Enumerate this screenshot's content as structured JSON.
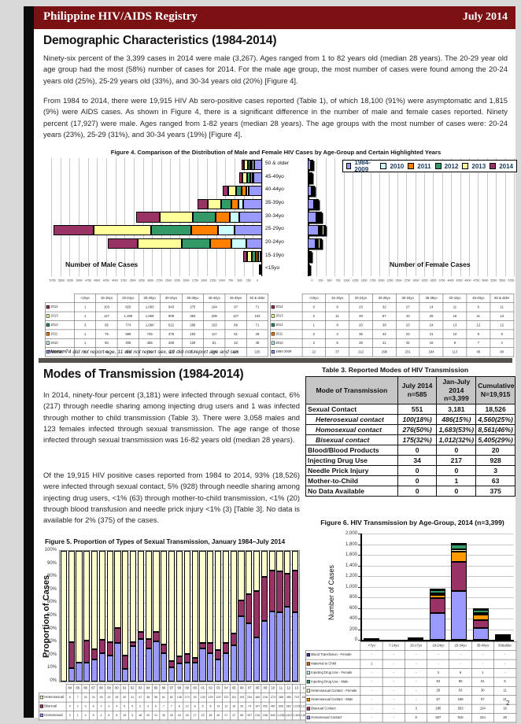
{
  "header": {
    "title": "Philippine HIV/AIDS Registry",
    "date": "July 2014"
  },
  "page_number": "2",
  "section1": {
    "heading": "Demographic Characteristics (1984-2014)",
    "para1": "Ninety-six percent of the 3,399 cases in 2014 were male (3,267). Ages ranged from 1 to 82 years old (median 28 years). The 20-29 year old age group had the most (58%) number of cases for 2014. For the male age group, the most number of cases were found among the 20-24 years old (25%), 25-29 years old (33%), and 30-34 years old (20%) [Figure 4].",
    "para2": "From 1984 to 2014, there were 19,915 HIV Ab sero-positive cases reported (Table 1), of which 18,100 (91%) were asymptomatic and 1,815 (9%) were AIDS cases. As shown in Figure 4, there is a significant difference in the number of male and female cases reported. Ninety percent (17,927) were male. Ages ranged from 1-82 years (median 28 years). The age groups with the most number of cases were: 20-24 years (23%), 25-29 (31%), and 30-34 years (19%) [Figure 4]."
  },
  "figure4": {
    "title": "Figure 4. Comparison of the Distribution of Male and Female HIV Cases by Age-Group and Certain Highlighted Years",
    "male_axis_label": "Number of Male Cases",
    "female_axis_label": "Number of Female Cases",
    "note_prefix": "*Note:",
    "note": "74 did not report age, 11 did not report sex, 10 did not report age and sex",
    "chart_data": {
      "type": "bar",
      "subtype": "butterfly-horizontal-stacked",
      "age_groups": [
        "<15yo",
        "15-19yo",
        "20-24yo",
        "25-29yo",
        "30-34yo",
        "35-39yo",
        "40-44yo",
        "45-49yo",
        "50 & older"
      ],
      "axis_max": 5750,
      "axis_step": 250,
      "legend_position": "top-right",
      "series": [
        {
          "name": "1984-2009",
          "color": "#9999FF",
          "male": [
            30,
            48,
            428,
            741,
            628,
            513,
            356,
            226,
            225
          ],
          "female": [
            22,
            37,
            212,
            298,
            231,
            184,
            113,
            45,
            80
          ]
        },
        {
          "name": "2010",
          "color": "#CCFFFF",
          "male": [
            1,
            50,
            405,
            455,
            258,
            128,
            81,
            42,
            48
          ],
          "female": [
            2,
            5,
            28,
            21,
            34,
            16,
            9,
            7,
            4
          ]
        },
        {
          "name": "2011",
          "color": "#FF8000",
          "male": [
            1,
            76,
            589,
            739,
            378,
            193,
            117,
            51,
            49
          ],
          "female": [
            2,
            3,
            36,
            44,
            23,
            21,
            10,
            8,
            9
          ]
        },
        {
          "name": "2012",
          "color": "#339966",
          "male": [
            3,
            95,
            774,
            1090,
            622,
            289,
            153,
            89,
            71
          ],
          "female": [
            1,
            8,
            20,
            39,
            23,
            24,
            13,
            12,
            12
          ]
        },
        {
          "name": "2013",
          "color": "#FFFF99",
          "male": [
            1,
            147,
            1199,
            1559,
            908,
            363,
            209,
            127,
            103
          ],
          "female": [
            2,
            11,
            48,
            57,
            43,
            29,
            16,
            11,
            13
          ]
        },
        {
          "name": "2014",
          "color": "#993366",
          "male": [
            1,
            103,
            820,
            1093,
            643,
            275,
            164,
            97,
            71
          ],
          "female": [
            0,
            8,
            23,
            32,
            27,
            14,
            11,
            6,
            11
          ]
        }
      ],
      "table_row_order": [
        "2014",
        "2013",
        "2012",
        "2011",
        "2010",
        "1984-2009"
      ]
    }
  },
  "section2": {
    "heading": "Modes of Transmission (1984-2014)",
    "para1": "In 2014, ninety-four percent (3,181) were infected through sexual contact, 6% (217) through needle sharing among injecting drug users and 1 was infected through mother to child transmission (Table 3). There were 3,058 males and 123 females infected through sexual transmission. The age range of those infected through sexual transmission was 16-82 years old (median 28 years).",
    "para2": "Of the 19,915 HIV positive cases reported from 1984 to 2014, 93% (18,526) were infected through sexual contact, 5% (928) through needle sharing among injecting drug users, <1% (63) through mother-to-child transmission, <1% (20) through blood transfusion and needle prick injury <1% (3) [Table 3]. No data is available for 2% (375) of the cases."
  },
  "table3": {
    "title": "Table 3. Reported Modes of HIV Transmission",
    "columns": [
      "Mode of Transmission",
      "July 2014\nn=585",
      "Jan-July 2014\nn=3,399",
      "Cumulative\nN=19,915"
    ],
    "rows": [
      {
        "label": "Sexual Contact",
        "sub": false,
        "values": [
          "551",
          "3,181",
          "18,526"
        ]
      },
      {
        "label": "Heterosexual contact",
        "sub": true,
        "values": [
          "100(18%)",
          "486(15%)",
          "4,560(25%)"
        ]
      },
      {
        "label": "Homosexual contact",
        "sub": true,
        "values": [
          "276(50%)",
          "1,683(53%)",
          "8,561(46%)"
        ]
      },
      {
        "label": "Bisexual contact",
        "sub": true,
        "values": [
          "175(32%)",
          "1,012(32%)",
          "5,405(29%)"
        ]
      },
      {
        "label": "Blood/Blood Products",
        "sub": false,
        "values": [
          "0",
          "0",
          "20"
        ]
      },
      {
        "label": "Injecting Drug Use",
        "sub": false,
        "values": [
          "34",
          "217",
          "928"
        ]
      },
      {
        "label": "Needle Prick Injury",
        "sub": false,
        "values": [
          "0",
          "0",
          "3"
        ]
      },
      {
        "label": "Mother-to-Child",
        "sub": false,
        "values": [
          "0",
          "1",
          "63"
        ]
      },
      {
        "label": "No Data Available",
        "sub": false,
        "values": [
          "0",
          "0",
          "375"
        ]
      }
    ]
  },
  "figure5": {
    "title": "Figure 5. Proportion of Types of Sexual Transmission, January 1984–July 2014",
    "ylabel": "Proportion of Cases",
    "chart_data": {
      "type": "bar",
      "subtype": "stacked-100pct-column",
      "categories": [
        "84",
        "85",
        "86",
        "87",
        "88",
        "89",
        "90",
        "91",
        "92",
        "93",
        "94",
        "95",
        "96",
        "97",
        "98",
        "99",
        "00",
        "01",
        "02",
        "03",
        "04",
        "05",
        "06",
        "07",
        "08",
        "09",
        "10",
        "11",
        "12",
        "13",
        "14"
      ],
      "y_ticks_pct": [
        0,
        10,
        20,
        30,
        40,
        50,
        60,
        70,
        80,
        90,
        100
      ],
      "stack_order_bottom_to_top": [
        "Homosexual",
        "Bisexual",
        "Heterosexual"
      ],
      "series": [
        {
          "name": "Heterosexual",
          "color": "#FFFFCC",
          "values": [
            5,
            7,
            24,
            24,
            18,
            19,
            28,
            30,
            41,
            47,
            38,
            56,
            61,
            82,
            138,
            174,
            93,
            126,
            129,
            129,
            123,
            151,
            193,
            234,
            160,
            216,
            274,
            288,
            480,
            715,
            486
          ]
        },
        {
          "name": "Bisexual",
          "color": "#993366",
          "values": [
            0,
            2,
            0,
            6,
            2,
            3,
            4,
            6,
            5,
            2,
            3,
            6,
            7,
            7,
            8,
            12,
            8,
            6,
            8,
            14,
            12,
            16,
            26,
            74,
            107,
            252,
            467,
            606,
            962,
            1019,
            1012
          ]
        },
        {
          "name": "Homosexual",
          "color": "#9999FF",
          "values": [
            0,
            1,
            4,
            5,
            4,
            6,
            8,
            15,
            5,
            18,
            20,
            21,
            30,
            25,
            18,
            30,
            17,
            22,
            46,
            40,
            27,
            47,
            85,
            307,
            215,
            236,
            640,
            1035,
            1647,
            2304,
            1683
          ]
        }
      ]
    }
  },
  "figure6": {
    "title": "Figure 6. HIV Transmission by Age-Group,  2014 (n=3,399)",
    "ylabel": "Number of Cases",
    "chart_data": {
      "type": "bar",
      "subtype": "stacked-column",
      "categories": [
        "<7yo",
        "7-14yo",
        "15-17yo",
        "18-24yo",
        "25-34yo",
        "35-49yo",
        "50&older"
      ],
      "ylim": [
        0,
        2000
      ],
      "y_step": 200,
      "stack_order_bottom_to_top": [
        "Homosexual Contact",
        "Bisexual Contact",
        "Heterosexual Contact - Male",
        "Heterosexual Contact - Female",
        "Injecting Drug Use - Male",
        "Injecting Drug Use - Female",
        "Maternal to Child",
        "Blood Transfusion - Female"
      ],
      "series": [
        {
          "name": "Blood Transfusion - Female",
          "color": "#333399",
          "values": [
            0,
            0,
            0,
            0,
            0,
            0,
            0
          ]
        },
        {
          "name": "Maternal to Child",
          "color": "#CC6600",
          "values": [
            1,
            0,
            0,
            0,
            0,
            0,
            0
          ]
        },
        {
          "name": "Injecting Drug Use - Female",
          "color": "#CCFFFF",
          "values": [
            0,
            0,
            0,
            2,
            6,
            1,
            0
          ]
        },
        {
          "name": "Injecting Drug Use - Male",
          "color": "#339966",
          "values": [
            0,
            0,
            0,
            62,
            80,
            61,
            5
          ]
        },
        {
          "name": "Heterosexual Contact - Female",
          "color": "#FFFFCC",
          "values": [
            0,
            0,
            0,
            29,
            53,
            30,
            11
          ]
        },
        {
          "name": "Heterosexual Contact - Male",
          "color": "#FF9900",
          "values": [
            0,
            0,
            0,
            57,
            188,
            97,
            21
          ]
        },
        {
          "name": "Bisexual Contact",
          "color": "#993366",
          "values": [
            0,
            0,
            3,
            285,
            553,
            154,
            18
          ]
        },
        {
          "name": "Homosexual Contact",
          "color": "#9999FF",
          "values": [
            0,
            0,
            8,
            507,
            915,
            224,
            29
          ]
        }
      ]
    }
  }
}
